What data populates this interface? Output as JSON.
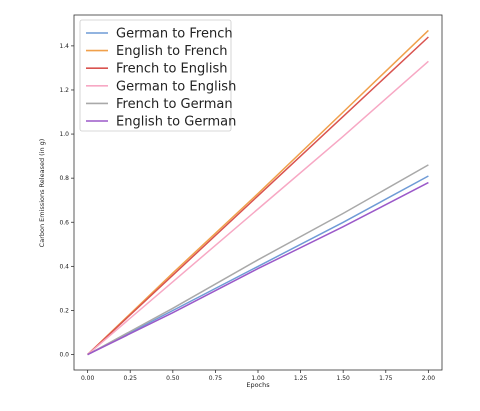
{
  "chart_data": {
    "type": "line",
    "title": "",
    "xlabel": "Epochs",
    "ylabel": "Carbon Emissions Released (in g)",
    "xlim": [
      -0.08,
      2.08
    ],
    "ylim": [
      -0.07,
      1.54
    ],
    "xticks": [
      "0.00",
      "0.25",
      "0.50",
      "0.75",
      "1.00",
      "1.25",
      "1.50",
      "1.75",
      "2.00"
    ],
    "yticks": [
      "0.0",
      "0.2",
      "0.4",
      "0.6",
      "0.8",
      "1.0",
      "1.2",
      "1.4"
    ],
    "grid": false,
    "legend_position": "top-left",
    "series": [
      {
        "name": "German to French",
        "color": "#6f9bd6",
        "x": [
          0,
          0.5,
          1.0,
          1.5,
          2.0
        ],
        "y": [
          0,
          0.2,
          0.4,
          0.6,
          0.81
        ]
      },
      {
        "name": "English to French",
        "color": "#f0a04b",
        "x": [
          0,
          0.5,
          1.0,
          1.5,
          2.0
        ],
        "y": [
          0,
          0.37,
          0.73,
          1.1,
          1.47
        ]
      },
      {
        "name": "French to English",
        "color": "#d9534f",
        "x": [
          0,
          0.5,
          1.0,
          1.5,
          2.0
        ],
        "y": [
          0,
          0.36,
          0.72,
          1.08,
          1.44
        ]
      },
      {
        "name": "German to English",
        "color": "#f7a8c4",
        "x": [
          0,
          0.5,
          1.0,
          1.5,
          2.0
        ],
        "y": [
          0,
          0.33,
          0.66,
          0.99,
          1.33
        ]
      },
      {
        "name": "French to German",
        "color": "#a9a9a9",
        "x": [
          0,
          0.5,
          1.0,
          1.5,
          2.0
        ],
        "y": [
          0,
          0.21,
          0.43,
          0.64,
          0.86
        ]
      },
      {
        "name": "English to German",
        "color": "#9b59c9",
        "x": [
          0,
          0.5,
          1.0,
          1.5,
          2.0
        ],
        "y": [
          0,
          0.19,
          0.39,
          0.58,
          0.78
        ]
      }
    ]
  }
}
